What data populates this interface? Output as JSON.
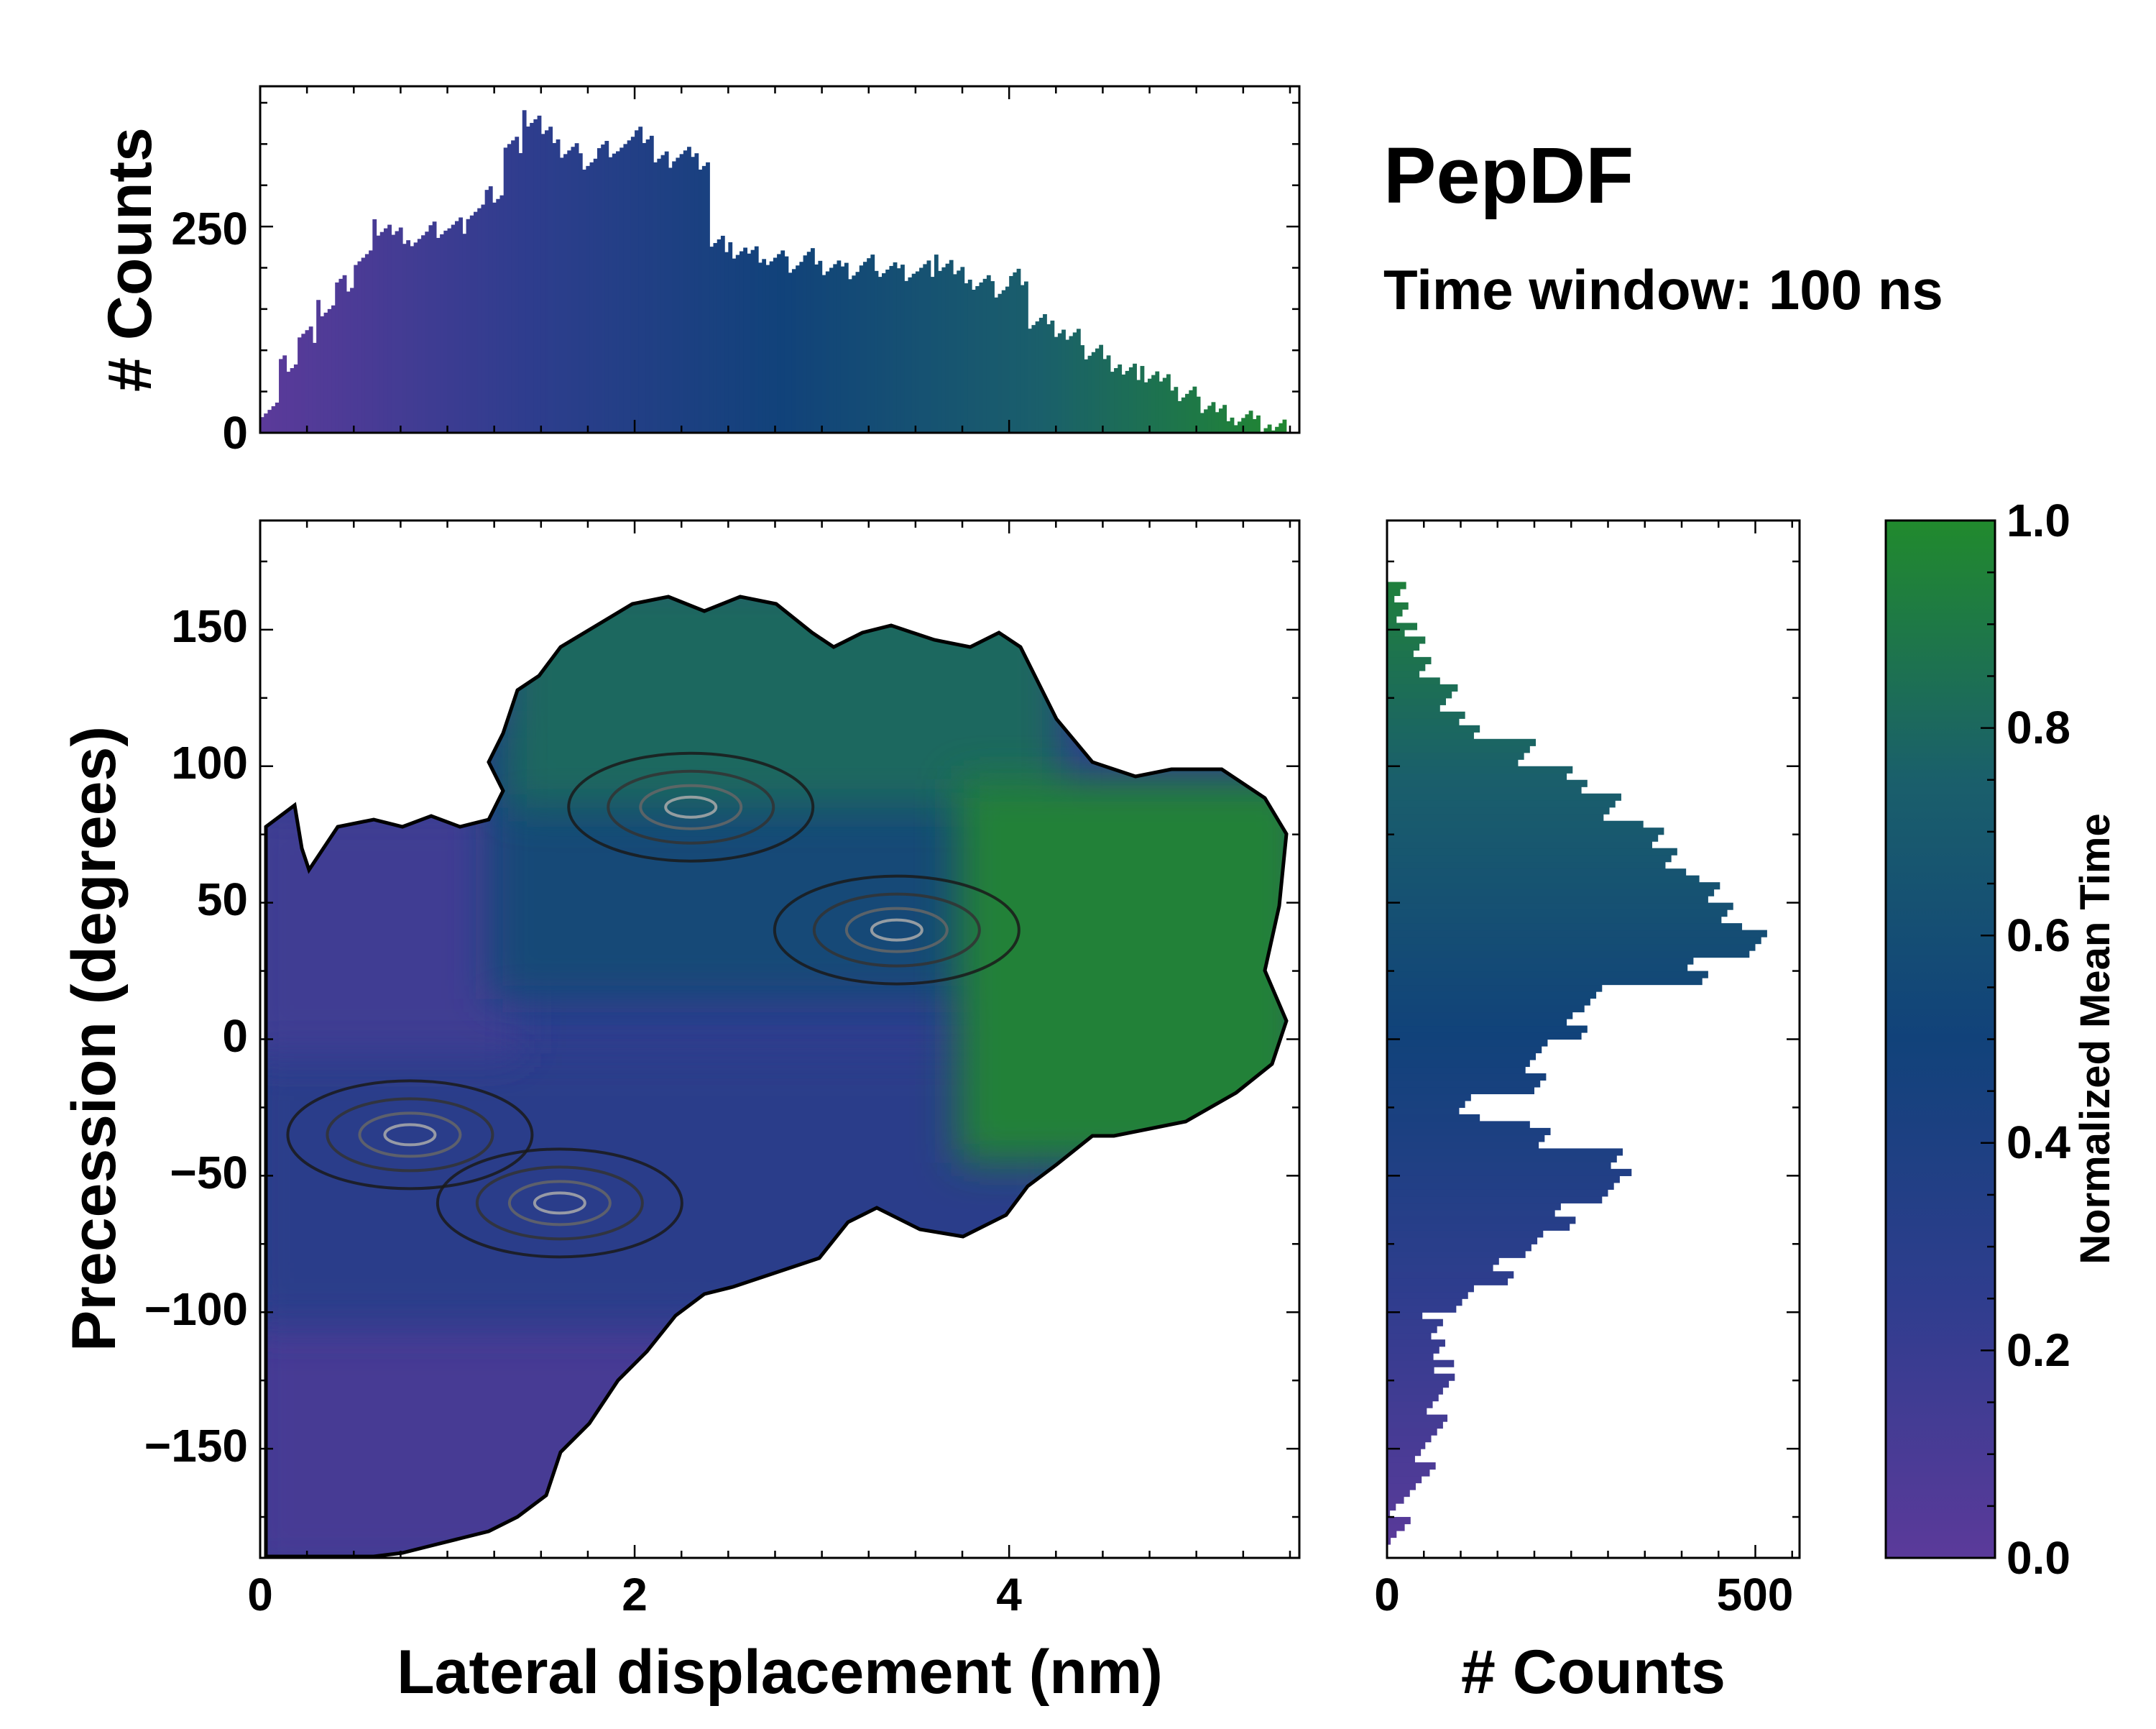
{
  "title": "PepDF",
  "subtitle": "Time window: 100 ns",
  "colormap": {
    "name": "purple-blue-green",
    "stops": [
      "#5b3a9a",
      "#2f3d8e",
      "#11427a",
      "#1a5f6b",
      "#218a2d"
    ]
  },
  "chart_data": [
    {
      "id": "main-heatmap",
      "type": "heatmap",
      "xlabel": "Lateral displacement (nm)",
      "ylabel": "Precession (degrees)",
      "xlim": [
        0,
        5.55
      ],
      "ylim": [
        -190,
        190
      ],
      "xticks": [
        0,
        2,
        4
      ],
      "xtick_labels": [
        "0",
        "2",
        "4"
      ],
      "yticks": [
        -150,
        -100,
        -50,
        0,
        50,
        100,
        150
      ],
      "ytick_labels": [
        "−150",
        "−100",
        "−50",
        "0",
        "50",
        "100",
        "150"
      ],
      "regions": [
        {
          "name": "low-precession-purple",
          "x_range": [
            0,
            2.3
          ],
          "y_range": [
            -190,
            -100
          ],
          "mean_time": 0.12
        },
        {
          "name": "lower-left-blue",
          "x_range": [
            0,
            4.2
          ],
          "y_range": [
            -100,
            -10
          ],
          "mean_time": 0.3
        },
        {
          "name": "upper-left-purple",
          "x_range": [
            0,
            1.3
          ],
          "y_range": [
            0,
            80
          ],
          "mean_time": 0.15
        },
        {
          "name": "central-band",
          "x_range": [
            1.3,
            3.8
          ],
          "y_range": [
            20,
            110
          ],
          "mean_time": 0.55
        },
        {
          "name": "top-green",
          "x_range": [
            1.4,
            4.2
          ],
          "y_range": [
            90,
            165
          ],
          "mean_time": 0.8
        },
        {
          "name": "right-green",
          "x_range": [
            3.8,
            5.5
          ],
          "y_range": [
            -40,
            90
          ],
          "mean_time": 0.95
        }
      ],
      "density_peaks": [
        {
          "x": 2.3,
          "y": 85
        },
        {
          "x": 3.4,
          "y": 40
        },
        {
          "x": 1.6,
          "y": -60
        },
        {
          "x": 0.8,
          "y": -35
        }
      ]
    },
    {
      "id": "top-histogram",
      "type": "bar",
      "ylabel": "# Counts",
      "xlim": [
        0,
        5.55
      ],
      "ylim": [
        0,
        420
      ],
      "yticks": [
        0,
        250
      ],
      "ytick_labels": [
        "0",
        "250"
      ],
      "x": [
        0.05,
        0.15,
        0.25,
        0.35,
        0.45,
        0.55,
        0.65,
        0.75,
        0.85,
        0.95,
        1.05,
        1.15,
        1.25,
        1.35,
        1.45,
        1.55,
        1.65,
        1.75,
        1.85,
        1.95,
        2.05,
        2.15,
        2.25,
        2.35,
        2.45,
        2.55,
        2.65,
        2.75,
        2.85,
        2.95,
        3.05,
        3.15,
        3.25,
        3.35,
        3.45,
        3.55,
        3.65,
        3.75,
        3.85,
        3.95,
        4.05,
        4.15,
        4.25,
        4.35,
        4.45,
        4.55,
        4.65,
        4.75,
        4.85,
        4.95,
        5.05,
        5.15,
        5.25,
        5.35,
        5.45
      ],
      "values": [
        30,
        85,
        120,
        150,
        180,
        210,
        250,
        240,
        235,
        245,
        250,
        270,
        290,
        350,
        380,
        360,
        340,
        330,
        345,
        350,
        360,
        330,
        340,
        330,
        230,
        220,
        215,
        210,
        205,
        215,
        200,
        195,
        205,
        200,
        195,
        200,
        205,
        190,
        180,
        175,
        190,
        135,
        125,
        115,
        100,
        85,
        75,
        70,
        60,
        45,
        35,
        25,
        18,
        10,
        5
      ],
      "colors_by": "x"
    },
    {
      "id": "right-histogram",
      "type": "bar",
      "orientation": "horizontal",
      "xlabel": "# Counts",
      "xlim": [
        0,
        560
      ],
      "xticks": [
        0,
        500
      ],
      "xtick_labels": [
        "0",
        "500"
      ],
      "ylim": [
        -190,
        190
      ],
      "y": [
        -185,
        -175,
        -165,
        -155,
        -145,
        -135,
        -125,
        -115,
        -105,
        -95,
        -85,
        -75,
        -65,
        -55,
        -45,
        -35,
        -25,
        -15,
        -5,
        5,
        15,
        25,
        35,
        45,
        55,
        65,
        75,
        85,
        95,
        105,
        115,
        125,
        135,
        145,
        155,
        165,
        175,
        185
      ],
      "values": [
        5,
        20,
        35,
        50,
        60,
        70,
        80,
        75,
        60,
        110,
        160,
        200,
        240,
        300,
        320,
        210,
        110,
        200,
        210,
        260,
        280,
        420,
        500,
        470,
        440,
        390,
        360,
        310,
        260,
        190,
        110,
        80,
        60,
        40,
        25,
        10,
        0,
        0
      ],
      "colors_by": "y"
    },
    {
      "id": "colorbar",
      "type": "colorbar",
      "label": "Normalized Mean Time",
      "range": [
        0.0,
        1.0
      ],
      "ticks": [
        0.0,
        0.2,
        0.4,
        0.6,
        0.8,
        1.0
      ],
      "tick_labels": [
        "0.0",
        "0.2",
        "0.4",
        "0.6",
        "0.8",
        "1.0"
      ]
    }
  ]
}
